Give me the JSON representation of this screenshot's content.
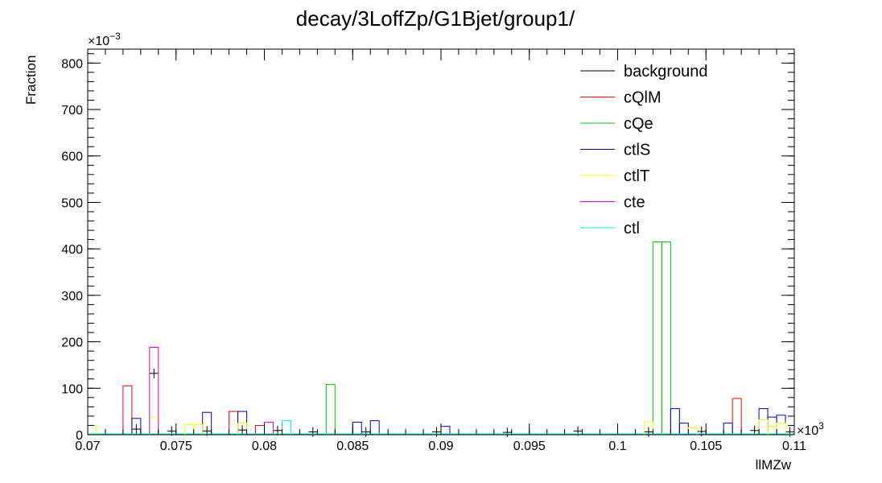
{
  "chart_data": {
    "type": "histogram",
    "title": "decay/3LoffZp/G1Bjet/group1/",
    "xlabel": "llMZw",
    "ylabel": "Fraction",
    "x_multiplier": "×10",
    "x_multiplier_exp": "3",
    "y_multiplier": "×10",
    "y_multiplier_exp": "−3",
    "xlim": [
      0.07,
      0.11
    ],
    "ylim": [
      0,
      830
    ],
    "x_ticks": [
      0.07,
      0.075,
      0.08,
      0.085,
      0.09,
      0.095,
      0.1,
      0.105,
      0.11
    ],
    "x_tick_labels": [
      "0.07",
      "0.075",
      "0.08",
      "0.085",
      "0.09",
      "0.095",
      "0.1",
      "0.105",
      "0.11"
    ],
    "y_ticks": [
      0,
      100,
      200,
      300,
      400,
      500,
      600,
      700,
      800
    ],
    "y_tick_labels": [
      "0",
      "100",
      "200",
      "300",
      "400",
      "500",
      "600",
      "700",
      "800"
    ],
    "bin_width": 0.0005,
    "legend_position": "top-right",
    "series": [
      {
        "name": "background",
        "color": "#000000",
        "style": "errorbar",
        "points": [
          {
            "x": 0.0725,
            "y": 12
          },
          {
            "x": 0.0735,
            "y": 132
          },
          {
            "x": 0.0745,
            "y": 8
          },
          {
            "x": 0.0765,
            "y": 8
          },
          {
            "x": 0.0785,
            "y": 10
          },
          {
            "x": 0.0805,
            "y": 9
          },
          {
            "x": 0.0825,
            "y": 6
          },
          {
            "x": 0.0855,
            "y": 6
          },
          {
            "x": 0.0895,
            "y": 6
          },
          {
            "x": 0.0935,
            "y": 5
          },
          {
            "x": 0.0975,
            "y": 8
          },
          {
            "x": 0.1015,
            "y": 6
          },
          {
            "x": 0.1045,
            "y": 7
          },
          {
            "x": 0.1075,
            "y": 9
          },
          {
            "x": 0.1095,
            "y": 6
          }
        ]
      },
      {
        "name": "cQlM",
        "color": "#ff0000",
        "style": "step",
        "points": [
          {
            "x": 0.072,
            "y": 105
          },
          {
            "x": 0.078,
            "y": 50
          },
          {
            "x": 0.0795,
            "y": 20
          },
          {
            "x": 0.1065,
            "y": 78
          }
        ]
      },
      {
        "name": "cQe",
        "color": "#00cc00",
        "style": "step",
        "points": [
          {
            "x": 0.0835,
            "y": 108
          },
          {
            "x": 0.102,
            "y": 415
          },
          {
            "x": 0.1025,
            "y": 415
          }
        ]
      },
      {
        "name": "ctlS",
        "color": "#0000cc",
        "style": "step",
        "points": [
          {
            "x": 0.0725,
            "y": 35
          },
          {
            "x": 0.0765,
            "y": 48
          },
          {
            "x": 0.0785,
            "y": 50
          },
          {
            "x": 0.085,
            "y": 27
          },
          {
            "x": 0.086,
            "y": 30
          },
          {
            "x": 0.09,
            "y": 18
          },
          {
            "x": 0.103,
            "y": 56
          },
          {
            "x": 0.1035,
            "y": 25
          },
          {
            "x": 0.106,
            "y": 25
          },
          {
            "x": 0.108,
            "y": 56
          },
          {
            "x": 0.1085,
            "y": 38
          },
          {
            "x": 0.109,
            "y": 42
          }
        ]
      },
      {
        "name": "ctlT",
        "color": "#ffff00",
        "style": "step",
        "points": [
          {
            "x": 0.07,
            "y": 20
          },
          {
            "x": 0.0735,
            "y": 38
          },
          {
            "x": 0.0755,
            "y": 22
          },
          {
            "x": 0.076,
            "y": 22
          },
          {
            "x": 0.0785,
            "y": 25
          },
          {
            "x": 0.1015,
            "y": 28
          },
          {
            "x": 0.104,
            "y": 15
          },
          {
            "x": 0.108,
            "y": 32
          },
          {
            "x": 0.1085,
            "y": 18
          },
          {
            "x": 0.109,
            "y": 25
          }
        ]
      },
      {
        "name": "cte",
        "color": "#dd00dd",
        "style": "step",
        "points": [
          {
            "x": 0.0735,
            "y": 188
          },
          {
            "x": 0.08,
            "y": 27
          }
        ]
      },
      {
        "name": "ctl",
        "color": "#00eeee",
        "style": "step",
        "points": [
          {
            "x": 0.081,
            "y": 30
          }
        ]
      }
    ]
  }
}
